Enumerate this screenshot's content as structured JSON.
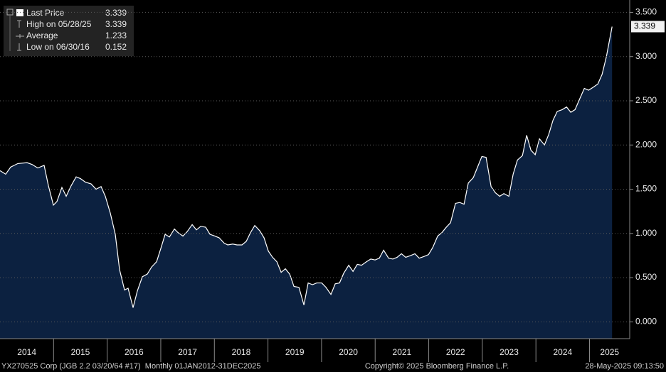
{
  "chart_data": {
    "type": "line",
    "legend": [
      {
        "label": "Last Price",
        "value": 3.339
      },
      {
        "label": "High on 05/28/25",
        "value": 3.339
      },
      {
        "label": "Average",
        "value": 1.233
      },
      {
        "label": "Low on 06/30/16",
        "value": 0.152
      }
    ],
    "series": [
      {
        "color": "#ffffff",
        "area_color": "#0c2140",
        "x": [
          2014,
          2014.106,
          2014.199,
          2014.332,
          2014.505,
          2014.598,
          2014.704,
          2014.823,
          2014.903,
          2014.996,
          2015.062,
          2015.155,
          2015.235,
          2015.328,
          2015.421,
          2015.501,
          2015.594,
          2015.7,
          2015.793,
          2015.886,
          2015.965,
          2016.058,
          2016.151,
          2016.231,
          2016.324,
          2016.39,
          2016.483,
          2016.563,
          2016.656,
          2016.749,
          2016.829,
          2016.922,
          2017.001,
          2017.081,
          2017.161,
          2017.254,
          2017.32,
          2017.413,
          2017.493,
          2017.586,
          2017.665,
          2017.745,
          2017.838,
          2017.918,
          2018.011,
          2018.09,
          2018.183,
          2018.25,
          2018.343,
          2018.422,
          2018.515,
          2018.595,
          2018.675,
          2018.754,
          2018.847,
          2018.927,
          2019.007,
          2019.086,
          2019.166,
          2019.246,
          2019.325,
          2019.405,
          2019.485,
          2019.578,
          2019.671,
          2019.75,
          2019.83,
          2019.91,
          2020.003,
          2020.082,
          2020.175,
          2020.255,
          2020.335,
          2020.414,
          2020.507,
          2020.587,
          2020.667,
          2020.746,
          2020.839,
          2020.919,
          2020.999,
          2021.078,
          2021.158,
          2021.251,
          2021.331,
          2021.41,
          2021.49,
          2021.57,
          2021.663,
          2021.742,
          2021.822,
          2021.915,
          2021.995,
          2022.074,
          2022.167,
          2022.247,
          2022.327,
          2022.406,
          2022.499,
          2022.579,
          2022.659,
          2022.738,
          2022.831,
          2022.911,
          2022.991,
          2023.07,
          2023.163,
          2023.243,
          2023.323,
          2023.402,
          2023.495,
          2023.575,
          2023.655,
          2023.748,
          2023.827,
          2023.907,
          2023.987,
          2024.066,
          2024.159,
          2024.239,
          2024.319,
          2024.398,
          2024.491,
          2024.571,
          2024.651,
          2024.73,
          2024.823,
          2024.903,
          2024.983,
          2025.062,
          2025.155,
          2025.235,
          2025.315,
          2025.421
        ],
        "values": [
          1.71,
          1.67,
          1.75,
          1.79,
          1.8,
          1.78,
          1.74,
          1.77,
          1.54,
          1.32,
          1.36,
          1.52,
          1.42,
          1.54,
          1.64,
          1.62,
          1.58,
          1.56,
          1.5,
          1.53,
          1.42,
          1.23,
          0.99,
          0.59,
          0.36,
          0.38,
          0.16,
          0.35,
          0.51,
          0.54,
          0.62,
          0.68,
          0.83,
          0.99,
          0.96,
          1.05,
          1.01,
          0.97,
          1.02,
          1.1,
          1.04,
          1.08,
          1.07,
          0.99,
          0.97,
          0.95,
          0.89,
          0.87,
          0.88,
          0.87,
          0.87,
          0.91,
          1.01,
          1.09,
          1.03,
          0.95,
          0.8,
          0.73,
          0.68,
          0.56,
          0.6,
          0.54,
          0.4,
          0.39,
          0.19,
          0.44,
          0.42,
          0.44,
          0.44,
          0.39,
          0.31,
          0.43,
          0.44,
          0.55,
          0.64,
          0.57,
          0.65,
          0.64,
          0.68,
          0.71,
          0.7,
          0.72,
          0.81,
          0.72,
          0.71,
          0.73,
          0.77,
          0.73,
          0.75,
          0.77,
          0.72,
          0.74,
          0.76,
          0.84,
          0.97,
          1.01,
          1.07,
          1.12,
          1.34,
          1.35,
          1.33,
          1.57,
          1.63,
          1.75,
          1.87,
          1.86,
          1.53,
          1.46,
          1.42,
          1.45,
          1.42,
          1.67,
          1.83,
          1.88,
          2.11,
          1.94,
          1.89,
          2.07,
          2,
          2.12,
          2.28,
          2.38,
          2.4,
          2.43,
          2.37,
          2.4,
          2.53,
          2.64,
          2.62,
          2.65,
          2.69,
          2.8,
          3,
          3.339
        ]
      }
    ],
    "xlim": [
      2014,
      2025.75
    ],
    "xticks": [
      2014,
      2015,
      2016,
      2017,
      2018,
      2019,
      2020,
      2021,
      2022,
      2023,
      2024,
      2025
    ],
    "ylim": [
      -0.19,
      3.64
    ],
    "yticks": [
      {
        "value": 0,
        "label": "0.000"
      },
      {
        "value": 0.5,
        "label": "0.500"
      },
      {
        "value": 1,
        "label": "1.000"
      },
      {
        "value": 1.5,
        "label": "1.500"
      },
      {
        "value": 2,
        "label": "2.000"
      },
      {
        "value": 2.5,
        "label": "2.500"
      },
      {
        "value": 3,
        "label": "3.000"
      },
      {
        "value": 3.5,
        "label": "3.500"
      }
    ],
    "grid": true,
    "footer": {
      "left": "YX270525 Corp (JGB 2.2 03/20/64 #17)  Monthly 01JAN2012-31DEC2025",
      "center": "Copyright© 2025 Bloomberg Finance L.P.",
      "right": "28-May-2025 09:13:50"
    }
  }
}
